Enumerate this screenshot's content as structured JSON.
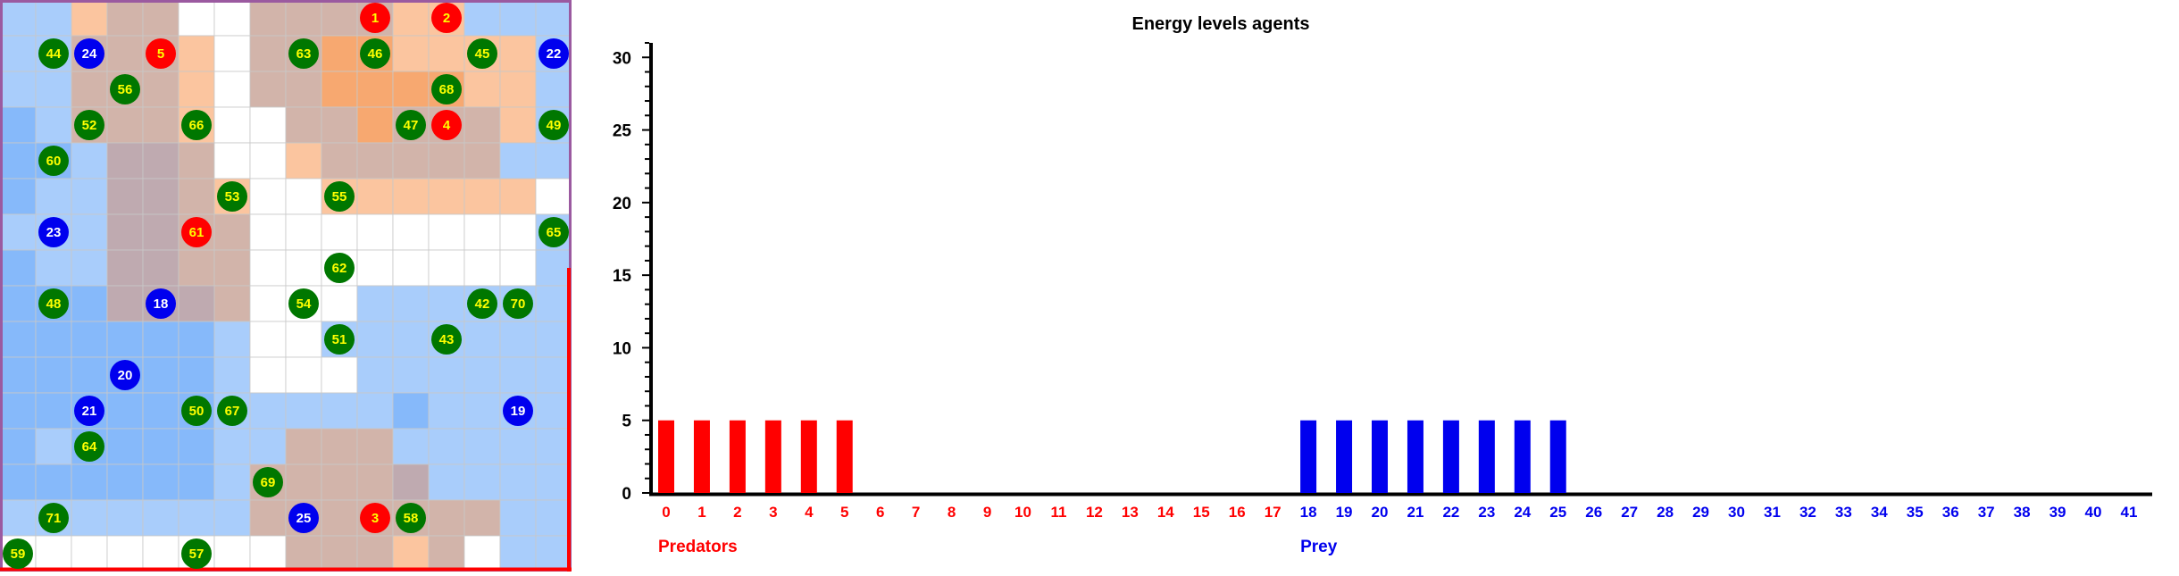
{
  "grid": {
    "rows": 16,
    "cols": 16,
    "cells": [
      "bbottwwttttoobbb",
      "bbtttowttOOoooob",
      "bbtttowttOOOOoob",
      "BbtttowwttOtttob",
      "BBbPPtwwotttttbb",
      "BbbPPtowwoooooow",
      "bbbPPttwwwwwwwwb",
      "BbbPPttwwwwwwwwb",
      "BBBPPPtwwwbbbbbb",
      "BBBBBBbwwbbbbbbb",
      "BBBBBBbwwwbbbbbb",
      "BBBBBBbbbbbBbbbb",
      "BbBBBBbbtttbbbbb",
      "BBBBBBbttttPbbbb",
      "bbbbbbbtttttttbb",
      "wwwwwwwwtttotwbb"
    ],
    "colors": {
      "b": "#a9cdfb",
      "B": "#86b9fa",
      "t": "#d2b4aa",
      "P": "#bfaab0",
      "o": "#fbc59f",
      "O": "#f7a870",
      "w": "#ffffff"
    },
    "agents": [
      {
        "id": "1",
        "kind": "predator",
        "col": 10,
        "row": 0
      },
      {
        "id": "2",
        "kind": "predator",
        "col": 12,
        "row": 0
      },
      {
        "id": "44",
        "kind": "plant",
        "col": 1,
        "row": 1
      },
      {
        "id": "24",
        "kind": "prey",
        "col": 2,
        "row": 1
      },
      {
        "id": "5",
        "kind": "predator",
        "col": 4,
        "row": 1
      },
      {
        "id": "63",
        "kind": "plant",
        "col": 8,
        "row": 1
      },
      {
        "id": "46",
        "kind": "plant",
        "col": 10,
        "row": 1
      },
      {
        "id": "45",
        "kind": "plant",
        "col": 13,
        "row": 1
      },
      {
        "id": "22",
        "kind": "prey",
        "col": 15,
        "row": 1
      },
      {
        "id": "56",
        "kind": "plant",
        "col": 3,
        "row": 2
      },
      {
        "id": "68",
        "kind": "plant",
        "col": 12,
        "row": 2
      },
      {
        "id": "52",
        "kind": "plant",
        "col": 2,
        "row": 3
      },
      {
        "id": "66",
        "kind": "plant",
        "col": 5,
        "row": 3
      },
      {
        "id": "47",
        "kind": "plant",
        "col": 11,
        "row": 3
      },
      {
        "id": "4",
        "kind": "predator",
        "col": 12,
        "row": 3
      },
      {
        "id": "49",
        "kind": "plant",
        "col": 15,
        "row": 3
      },
      {
        "id": "60",
        "kind": "plant",
        "col": 1,
        "row": 4
      },
      {
        "id": "53",
        "kind": "plant",
        "col": 6,
        "row": 5
      },
      {
        "id": "55",
        "kind": "plant",
        "col": 9,
        "row": 5
      },
      {
        "id": "23",
        "kind": "prey",
        "col": 1,
        "row": 6
      },
      {
        "id": "61",
        "kind": "predator",
        "col": 5,
        "row": 6
      },
      {
        "id": "65",
        "kind": "plant",
        "col": 15,
        "row": 6
      },
      {
        "id": "62",
        "kind": "plant",
        "col": 9,
        "row": 7
      },
      {
        "id": "48",
        "kind": "plant",
        "col": 1,
        "row": 8
      },
      {
        "id": "18",
        "kind": "prey",
        "col": 4,
        "row": 8
      },
      {
        "id": "54",
        "kind": "plant",
        "col": 8,
        "row": 8
      },
      {
        "id": "42",
        "kind": "plant",
        "col": 13,
        "row": 8
      },
      {
        "id": "70",
        "kind": "plant",
        "col": 14,
        "row": 8
      },
      {
        "id": "51",
        "kind": "plant",
        "col": 9,
        "row": 9
      },
      {
        "id": "43",
        "kind": "plant",
        "col": 12,
        "row": 9
      },
      {
        "id": "20",
        "kind": "prey",
        "col": 3,
        "row": 10
      },
      {
        "id": "21",
        "kind": "prey",
        "col": 2,
        "row": 11
      },
      {
        "id": "50",
        "kind": "plant",
        "col": 5,
        "row": 11
      },
      {
        "id": "67",
        "kind": "plant",
        "col": 6,
        "row": 11
      },
      {
        "id": "19",
        "kind": "prey",
        "col": 14,
        "row": 11
      },
      {
        "id": "64",
        "kind": "plant",
        "col": 2,
        "row": 12
      },
      {
        "id": "69",
        "kind": "plant",
        "col": 7,
        "row": 13
      },
      {
        "id": "71",
        "kind": "plant",
        "col": 1,
        "row": 14
      },
      {
        "id": "25",
        "kind": "prey",
        "col": 8,
        "row": 14
      },
      {
        "id": "3",
        "kind": "predator",
        "col": 10,
        "row": 14
      },
      {
        "id": "58",
        "kind": "plant",
        "col": 11,
        "row": 14
      },
      {
        "id": "59",
        "kind": "plant",
        "col": 0,
        "row": 15
      },
      {
        "id": "57",
        "kind": "plant",
        "col": 5,
        "row": 15
      }
    ],
    "agent_colors": {
      "predator": "#ff0000",
      "prey": "#0000ee",
      "plant": "#007700"
    },
    "agent_text_colors": {
      "predator": "#ffff00",
      "prey": "#ffffff",
      "plant": "#ffff00"
    },
    "frame_color": "#9b5aa0",
    "frame_accent": "#ff0000"
  },
  "chart_data": {
    "type": "bar",
    "title": "Energy levels agents",
    "categories": [
      "0",
      "1",
      "2",
      "3",
      "4",
      "5",
      "6",
      "7",
      "8",
      "9",
      "10",
      "11",
      "12",
      "13",
      "14",
      "15",
      "16",
      "17",
      "18",
      "19",
      "20",
      "21",
      "22",
      "23",
      "24",
      "25",
      "26",
      "27",
      "28",
      "29",
      "30",
      "31",
      "32",
      "33",
      "34",
      "35",
      "36",
      "37",
      "38",
      "39",
      "40",
      "41"
    ],
    "values": [
      5,
      5,
      5,
      5,
      5,
      5,
      0,
      0,
      0,
      0,
      0,
      0,
      0,
      0,
      0,
      0,
      0,
      0,
      5,
      5,
      5,
      5,
      5,
      5,
      5,
      5,
      0,
      0,
      0,
      0,
      0,
      0,
      0,
      0,
      0,
      0,
      0,
      0,
      0,
      0,
      0,
      0
    ],
    "ylim": [
      0,
      31
    ],
    "yticks": [
      0,
      5,
      10,
      15,
      20,
      25,
      30
    ],
    "groups": [
      {
        "name": "Predators",
        "from": 0,
        "to": 17,
        "color": "#ff0000"
      },
      {
        "name": "Prey",
        "from": 18,
        "to": 41,
        "color": "#0000ee"
      }
    ],
    "xlabel": "",
    "ylabel": "",
    "grid": false
  }
}
